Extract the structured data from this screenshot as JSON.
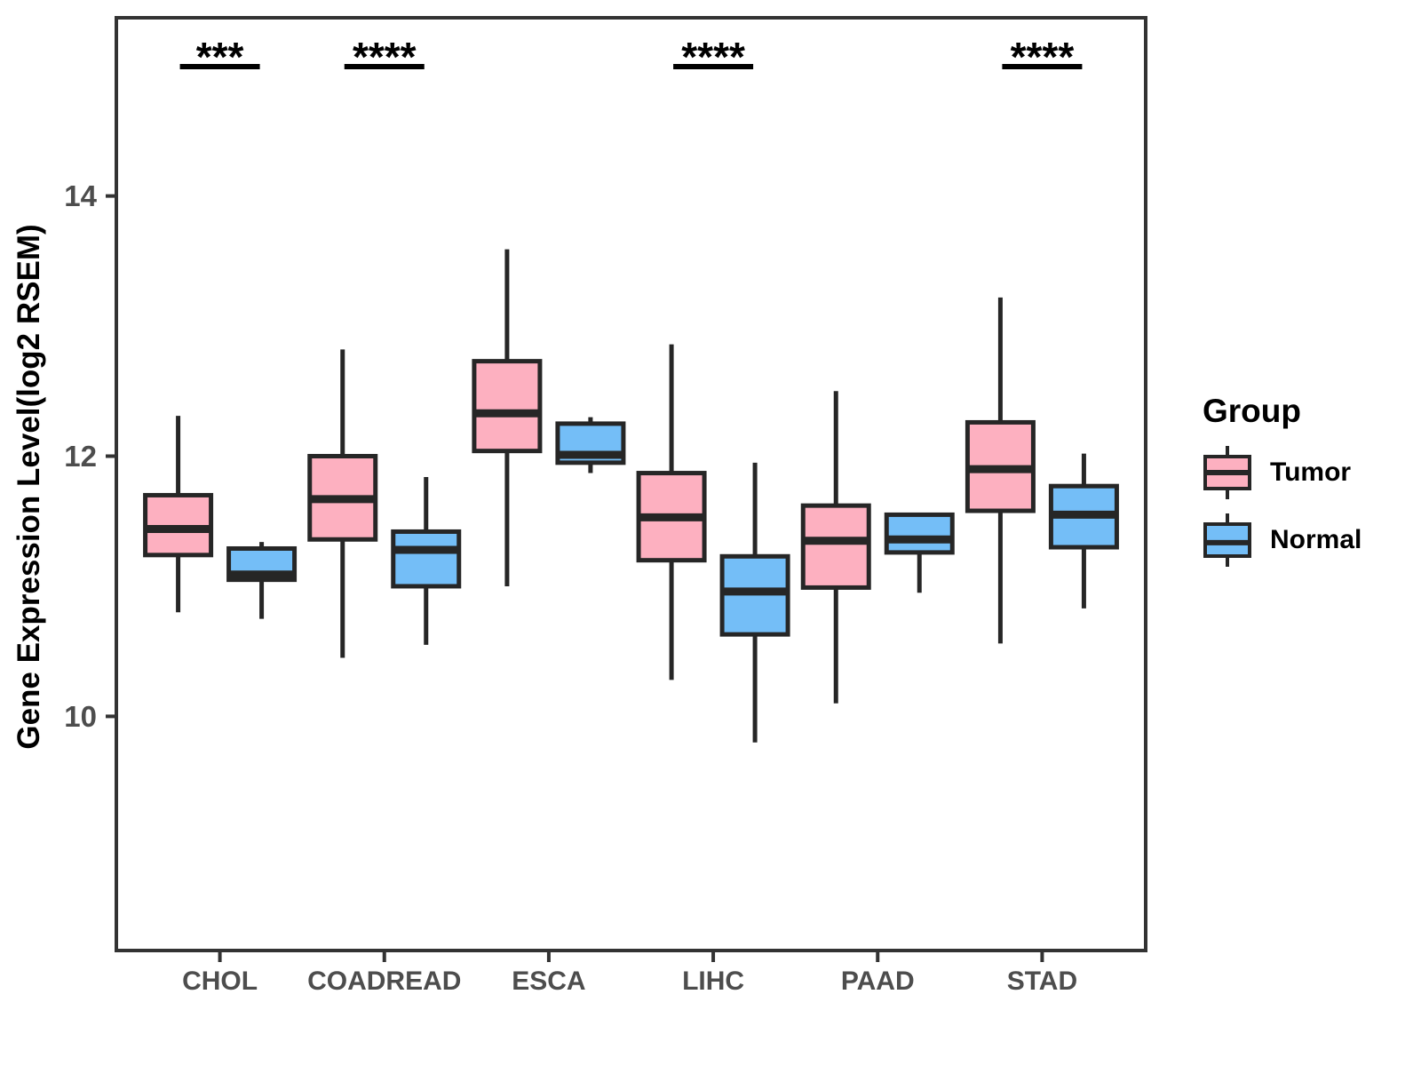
{
  "chart_data": {
    "type": "boxplot",
    "title": "",
    "xlabel": "",
    "ylabel": "Gene Expression Level(log2 RSEM)",
    "categories": [
      "CHOL",
      "COADREAD",
      "ESCA",
      "LIHC",
      "PAAD",
      "STAD"
    ],
    "yticks": [
      14,
      12,
      10
    ],
    "ylim": [
      8.2,
      15.37
    ],
    "grid": false,
    "legend": {
      "title": "Group",
      "position": "right",
      "items": [
        {
          "name": "Tumor",
          "color": "#FDB0C0"
        },
        {
          "name": "Normal",
          "color": "#74BEF7"
        }
      ]
    },
    "series": [
      {
        "name": "Tumor",
        "color": "#FDB0C0",
        "boxes": [
          {
            "category": "CHOL",
            "min": 10.8,
            "q1": 11.24,
            "median": 11.44,
            "q3": 11.7,
            "max": 12.31
          },
          {
            "category": "COADREAD",
            "min": 10.45,
            "q1": 11.36,
            "median": 11.67,
            "q3": 12.0,
            "max": 12.82
          },
          {
            "category": "ESCA",
            "min": 11.0,
            "q1": 12.04,
            "median": 12.33,
            "q3": 12.73,
            "max": 13.59
          },
          {
            "category": "LIHC",
            "min": 10.28,
            "q1": 11.2,
            "median": 11.53,
            "q3": 11.87,
            "max": 12.86
          },
          {
            "category": "PAAD",
            "min": 10.1,
            "q1": 10.99,
            "median": 11.35,
            "q3": 11.62,
            "max": 12.5
          },
          {
            "category": "STAD",
            "min": 10.56,
            "q1": 11.58,
            "median": 11.9,
            "q3": 12.26,
            "max": 13.22
          }
        ]
      },
      {
        "name": "Normal",
        "color": "#74BEF7",
        "boxes": [
          {
            "category": "CHOL",
            "min": 10.75,
            "q1": 11.05,
            "median": 11.09,
            "q3": 11.29,
            "max": 11.34
          },
          {
            "category": "COADREAD",
            "min": 10.55,
            "q1": 11.0,
            "median": 11.28,
            "q3": 11.42,
            "max": 11.84
          },
          {
            "category": "ESCA",
            "min": 11.87,
            "q1": 11.95,
            "median": 12.01,
            "q3": 12.25,
            "max": 12.3
          },
          {
            "category": "LIHC",
            "min": 9.8,
            "q1": 10.63,
            "median": 10.96,
            "q3": 11.23,
            "max": 11.95
          },
          {
            "category": "PAAD",
            "min": 10.95,
            "q1": 11.26,
            "median": 11.36,
            "q3": 11.55,
            "max": 11.55
          },
          {
            "category": "STAD",
            "min": 10.83,
            "q1": 11.3,
            "median": 11.55,
            "q3": 11.77,
            "max": 12.02
          }
        ]
      }
    ],
    "significance": [
      {
        "category": "CHOL",
        "label": "***"
      },
      {
        "category": "COADREAD",
        "label": "****"
      },
      {
        "category": "LIHC",
        "label": "****"
      },
      {
        "category": "STAD",
        "label": "****"
      }
    ],
    "style": {
      "box_border": "#262626",
      "axis_color": "#333333",
      "tick_label_color": "#4D4D4D",
      "significance_color": "#000000",
      "background": "#FFFFFF"
    }
  }
}
